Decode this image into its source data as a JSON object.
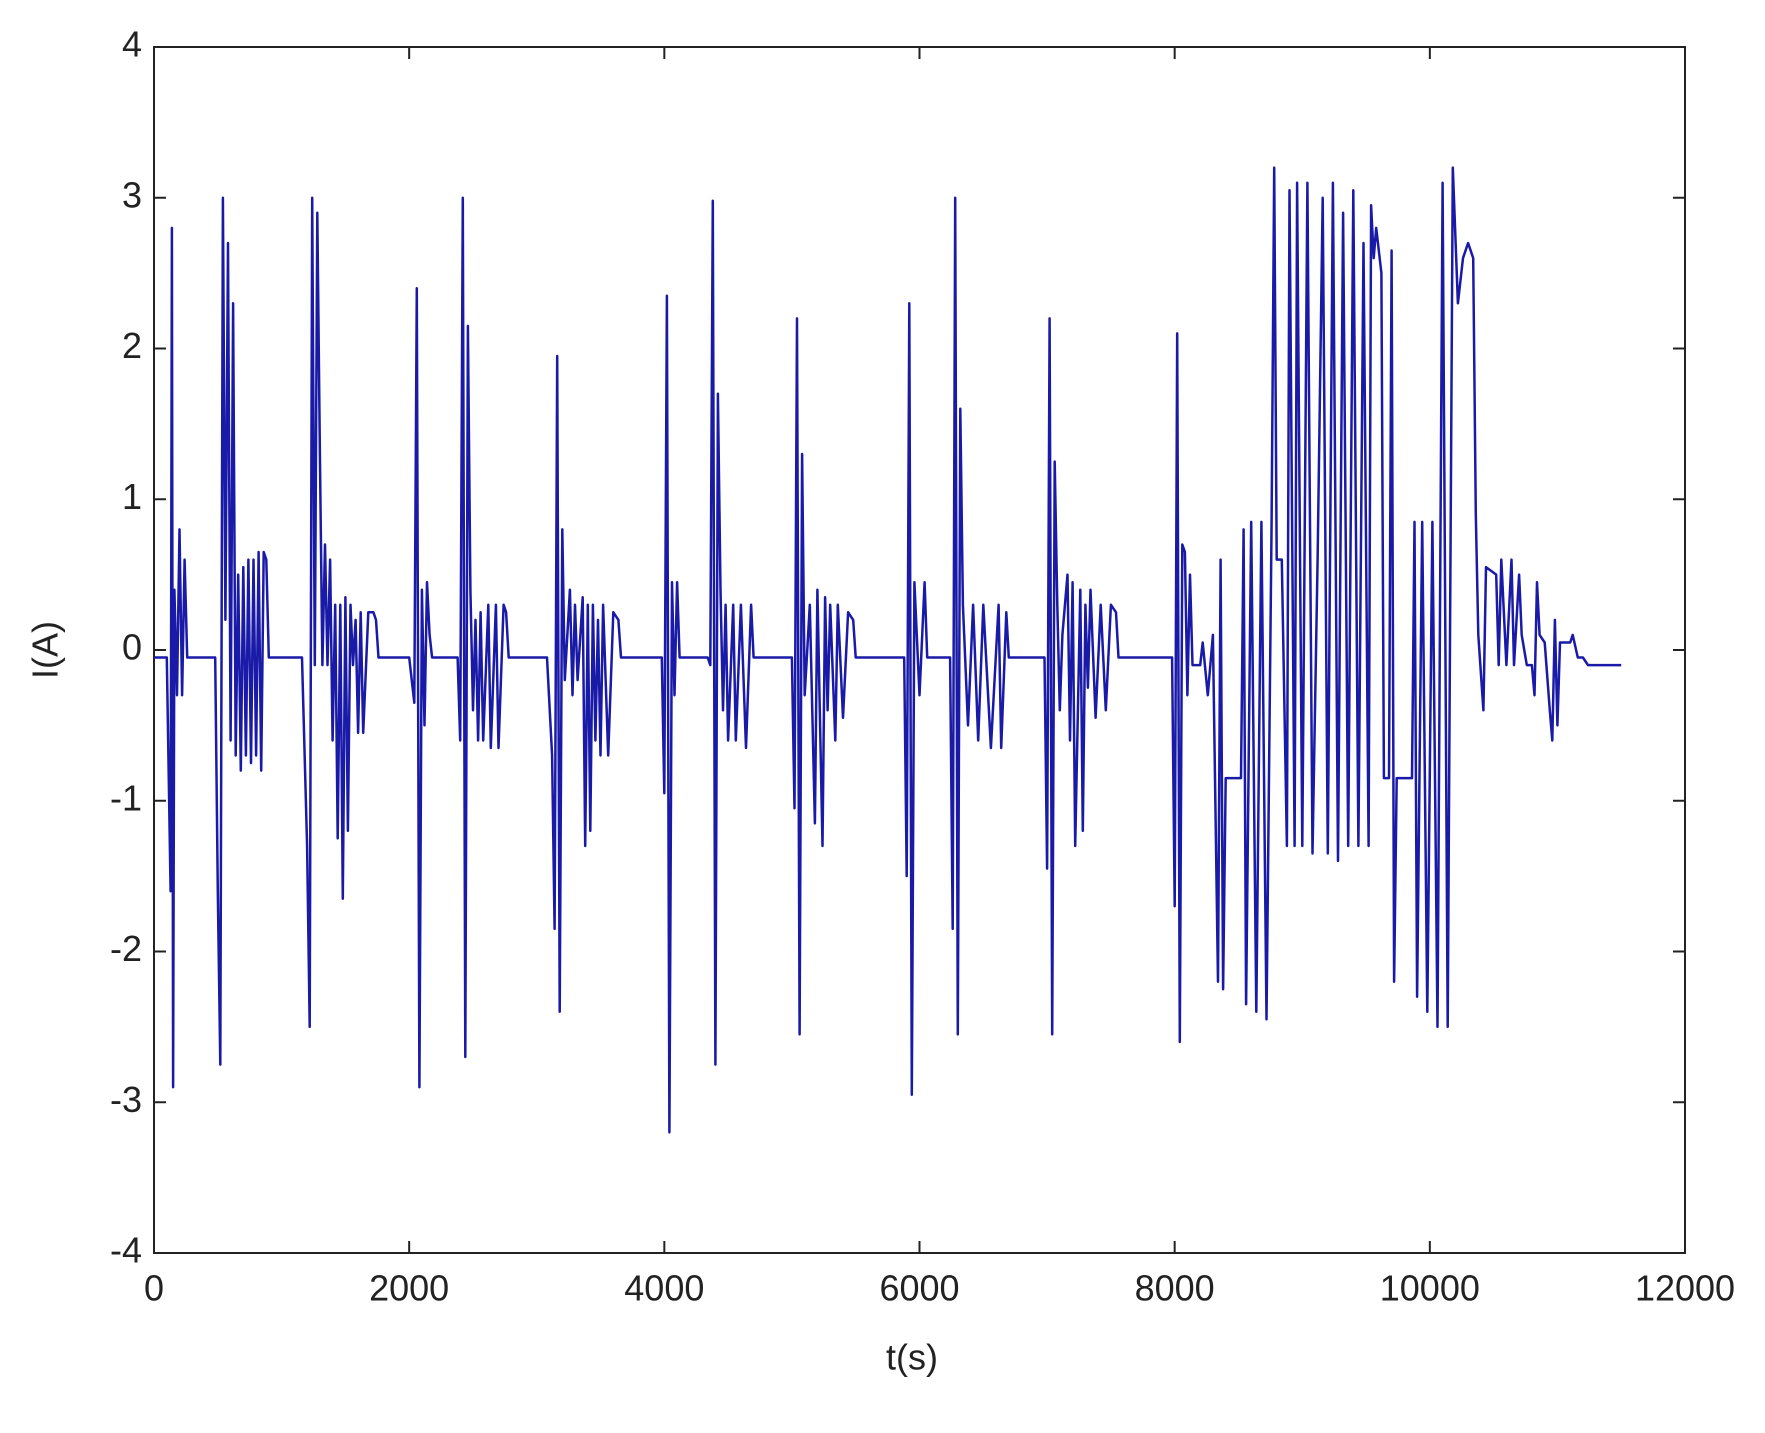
{
  "chart_data": {
    "type": "line",
    "x_label": "t(s)",
    "y_label": "I(A)",
    "xlim": [
      0,
      12000
    ],
    "xticks": [
      0,
      2000,
      4000,
      6000,
      8000,
      10000,
      12000
    ],
    "ylim": [
      -4,
      4
    ],
    "yticks": [
      -4,
      -3,
      -2,
      -1,
      0,
      1,
      2,
      3,
      4
    ],
    "grid": false,
    "color": "#1a1aa8",
    "x": [
      0,
      100,
      130,
      140,
      150,
      160,
      180,
      200,
      220,
      240,
      260,
      480,
      500,
      520,
      540,
      560,
      580,
      600,
      620,
      640,
      660,
      680,
      700,
      720,
      740,
      760,
      780,
      800,
      820,
      840,
      860,
      880,
      900,
      1160,
      1200,
      1220,
      1240,
      1260,
      1280,
      1300,
      1320,
      1340,
      1360,
      1380,
      1400,
      1420,
      1440,
      1460,
      1480,
      1500,
      1520,
      1540,
      1560,
      1580,
      1600,
      1620,
      1640,
      1680,
      1720,
      1740,
      1760,
      2000,
      2040,
      2060,
      2080,
      2100,
      2120,
      2140,
      2160,
      2180,
      2380,
      2400,
      2420,
      2440,
      2460,
      2480,
      2500,
      2520,
      2540,
      2560,
      2580,
      2620,
      2640,
      2680,
      2700,
      2740,
      2760,
      2780,
      3080,
      3120,
      3140,
      3160,
      3180,
      3200,
      3220,
      3260,
      3280,
      3300,
      3320,
      3360,
      3380,
      3400,
      3420,
      3440,
      3460,
      3480,
      3500,
      3520,
      3560,
      3600,
      3640,
      3660,
      3980,
      4000,
      4020,
      4040,
      4060,
      4080,
      4100,
      4120,
      4340,
      4360,
      4380,
      4400,
      4420,
      4440,
      4460,
      4480,
      4500,
      4540,
      4560,
      4600,
      4640,
      4680,
      4700,
      5000,
      5020,
      5040,
      5060,
      5080,
      5100,
      5140,
      5180,
      5200,
      5240,
      5260,
      5280,
      5300,
      5340,
      5360,
      5400,
      5440,
      5480,
      5500,
      5880,
      5900,
      5920,
      5940,
      5960,
      6000,
      6040,
      6060,
      6240,
      6260,
      6280,
      6300,
      6320,
      6340,
      6380,
      6420,
      6460,
      6500,
      6560,
      6620,
      6640,
      6680,
      6700,
      6980,
      7000,
      7020,
      7040,
      7060,
      7080,
      7100,
      7120,
      7160,
      7180,
      7200,
      7220,
      7260,
      7280,
      7300,
      7320,
      7340,
      7380,
      7420,
      7460,
      7500,
      7540,
      7560,
      7980,
      8000,
      8020,
      8040,
      8060,
      8080,
      8100,
      8120,
      8140,
      8200,
      8220,
      8260,
      8300,
      8340,
      8360,
      8380,
      8400,
      8520,
      8540,
      8560,
      8600,
      8640,
      8680,
      8720,
      8760,
      8780,
      8800,
      8840,
      8880,
      8900,
      8940,
      8960,
      9000,
      9040,
      9080,
      9120,
      9160,
      9200,
      9240,
      9280,
      9320,
      9360,
      9400,
      9440,
      9480,
      9520,
      9540,
      9560,
      9580,
      9620,
      9640,
      9680,
      9700,
      9720,
      9740,
      9860,
      9880,
      9900,
      9940,
      9980,
      10020,
      10060,
      10100,
      10140,
      10180,
      10220,
      10260,
      10300,
      10340,
      10360,
      10380,
      10420,
      10440,
      10520,
      10540,
      10560,
      10600,
      10640,
      10660,
      10700,
      10720,
      10760,
      10800,
      10820,
      10840,
      10860,
      10900,
      10940,
      10960,
      10980,
      11000,
      11020,
      11100,
      11120,
      11160,
      11200,
      11240,
      11500
    ],
    "values": [
      -0.05,
      -0.05,
      -1.6,
      2.8,
      -2.9,
      0.4,
      -0.3,
      0.8,
      -0.3,
      0.6,
      -0.05,
      -0.05,
      -1.6,
      -2.75,
      3.0,
      0.2,
      2.7,
      -0.6,
      2.3,
      -0.7,
      0.5,
      -0.8,
      0.55,
      -0.7,
      0.6,
      -0.75,
      0.6,
      -0.7,
      0.65,
      -0.8,
      0.65,
      0.6,
      -0.05,
      -0.05,
      -1.3,
      -2.5,
      3.0,
      -0.1,
      2.9,
      1.3,
      -0.1,
      0.7,
      -0.1,
      0.6,
      -0.6,
      0.3,
      -1.25,
      0.3,
      -1.65,
      0.35,
      -1.2,
      0.3,
      -0.1,
      0.2,
      -0.55,
      0.25,
      -0.55,
      0.25,
      0.25,
      0.2,
      -0.05,
      -0.05,
      -0.35,
      2.4,
      -2.9,
      0.4,
      -0.5,
      0.45,
      0.1,
      -0.05,
      -0.05,
      -0.6,
      3.0,
      -2.7,
      2.15,
      0.4,
      -0.4,
      0.2,
      -0.6,
      0.25,
      -0.6,
      0.3,
      -0.65,
      0.3,
      -0.65,
      0.3,
      0.25,
      -0.05,
      -0.05,
      -0.7,
      -1.85,
      1.95,
      -2.4,
      0.8,
      -0.2,
      0.4,
      -0.3,
      0.3,
      -0.2,
      0.35,
      -1.3,
      0.3,
      -1.2,
      0.3,
      -0.6,
      0.2,
      -0.7,
      0.3,
      -0.7,
      0.25,
      0.2,
      -0.05,
      -0.05,
      -0.95,
      2.35,
      -3.2,
      0.45,
      -0.3,
      0.45,
      -0.05,
      -0.05,
      -0.1,
      2.98,
      -2.75,
      1.7,
      0.4,
      -0.4,
      0.3,
      -0.6,
      0.3,
      -0.6,
      0.3,
      -0.65,
      0.3,
      -0.05,
      -0.05,
      -1.05,
      2.2,
      -2.55,
      1.3,
      -0.3,
      0.3,
      -1.15,
      0.4,
      -1.3,
      0.35,
      -0.4,
      0.3,
      -0.6,
      0.3,
      -0.45,
      0.25,
      0.2,
      -0.05,
      -0.05,
      -1.5,
      2.3,
      -2.95,
      0.45,
      -0.3,
      0.45,
      -0.05,
      -0.05,
      -1.85,
      3.0,
      -2.55,
      1.6,
      0.3,
      -0.5,
      0.3,
      -0.6,
      0.3,
      -0.65,
      0.3,
      -0.65,
      0.25,
      -0.05,
      -0.05,
      -1.45,
      2.2,
      -2.55,
      1.25,
      0.3,
      -0.4,
      0.1,
      0.5,
      -0.6,
      0.45,
      -1.3,
      0.4,
      -1.2,
      0.3,
      -0.25,
      0.4,
      -0.45,
      0.3,
      -0.4,
      0.3,
      0.25,
      -0.05,
      -0.05,
      -1.7,
      2.1,
      -2.6,
      0.7,
      0.65,
      -0.3,
      0.5,
      -0.1,
      -0.1,
      0.05,
      -0.3,
      0.1,
      -2.2,
      0.6,
      -2.25,
      -0.85,
      -0.85,
      0.8,
      -2.35,
      0.85,
      -2.4,
      0.85,
      -2.45,
      0.85,
      3.2,
      0.6,
      0.6,
      -1.3,
      3.05,
      -1.3,
      3.1,
      -1.3,
      3.1,
      -1.35,
      0.6,
      3.0,
      -1.35,
      3.1,
      -1.4,
      2.9,
      -1.3,
      3.05,
      -1.3,
      2.7,
      -1.3,
      2.95,
      2.6,
      2.8,
      2.5,
      -0.85,
      -0.85,
      2.65,
      -2.2,
      -0.85,
      -0.85,
      0.85,
      -2.3,
      0.85,
      -2.4,
      0.85,
      -2.5,
      3.1,
      -2.5,
      3.2,
      2.3,
      2.6,
      2.7,
      2.6,
      0.9,
      0.1,
      -0.4,
      0.55,
      0.5,
      -0.1,
      0.6,
      -0.1,
      0.6,
      -0.1,
      0.5,
      0.1,
      -0.1,
      -0.1,
      -0.3,
      0.45,
      0.1,
      0.05,
      -0.4,
      -0.6,
      0.2,
      -0.5,
      0.05,
      0.05,
      0.1,
      -0.05,
      -0.05,
      -0.1,
      -0.1
    ]
  }
}
